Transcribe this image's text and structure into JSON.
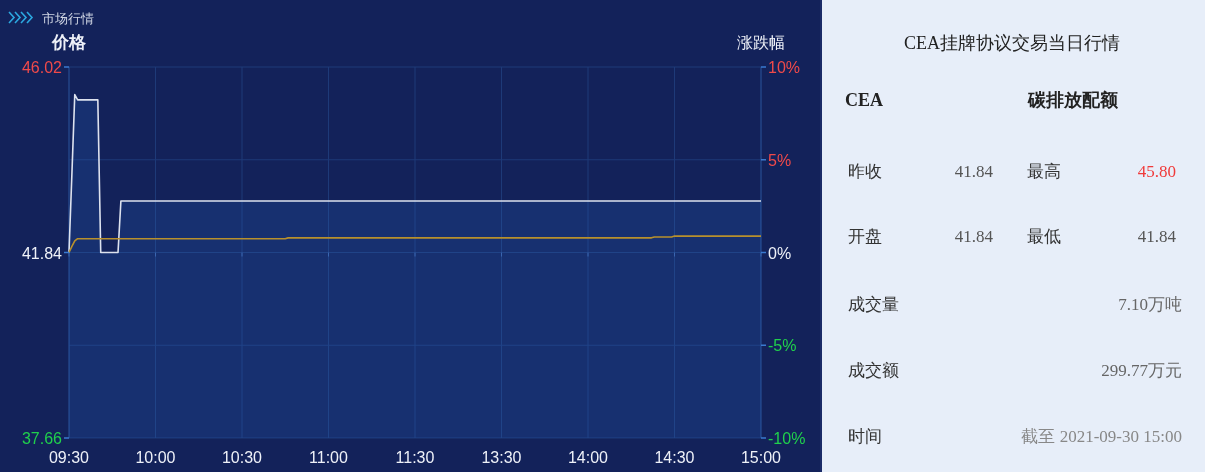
{
  "chart_data": [
    {
      "type": "line",
      "title": "市场行情",
      "ylabel": "价格",
      "y2label": "涨跌幅",
      "categories": [
        "09:30",
        null,
        null,
        null,
        null,
        null,
        null,
        null,
        null,
        null,
        null,
        null,
        null,
        null,
        null,
        null,
        null,
        null,
        null,
        null,
        null,
        null,
        null,
        null,
        null,
        null,
        null,
        null,
        null,
        null,
        "10:00",
        null,
        null,
        null,
        null,
        null,
        null,
        null,
        null,
        null,
        null,
        null,
        null,
        null,
        null,
        null,
        null,
        null,
        null,
        null,
        null,
        null,
        null,
        null,
        null,
        null,
        null,
        null,
        null,
        null,
        "10:30",
        null,
        null,
        null,
        null,
        null,
        null,
        null,
        null,
        null,
        null,
        null,
        null,
        null,
        null,
        null,
        null,
        null,
        null,
        null,
        null,
        null,
        null,
        null,
        null,
        null,
        null,
        null,
        null,
        null,
        "11:00",
        null,
        null,
        null,
        null,
        null,
        null,
        null,
        null,
        null,
        null,
        null,
        null,
        null,
        null,
        null,
        null,
        null,
        null,
        null,
        null,
        null,
        null,
        null,
        null,
        null,
        null,
        null,
        null,
        null,
        "11:30",
        null,
        null,
        null,
        null,
        null,
        null,
        null,
        null,
        null,
        null,
        null,
        null,
        null,
        null,
        null,
        null,
        null,
        null,
        null,
        null,
        null,
        null,
        null,
        null,
        null,
        null,
        null,
        null,
        null,
        "13:30",
        null,
        null,
        null,
        null,
        null,
        null,
        null,
        null,
        null,
        null,
        null,
        null,
        null,
        null,
        null,
        null,
        null,
        null,
        null,
        null,
        null,
        null,
        null,
        null,
        null,
        null,
        null,
        null,
        null,
        "14:00",
        null,
        null,
        null,
        null,
        null,
        null,
        null,
        null,
        null,
        null,
        null,
        null,
        null,
        null,
        null,
        null,
        null,
        null,
        null,
        null,
        null,
        null,
        null,
        null,
        null,
        null,
        null,
        null,
        null,
        "14:30",
        null,
        null,
        null,
        null,
        null,
        null,
        null,
        null,
        null,
        null,
        null,
        null,
        null,
        null,
        null,
        null,
        null,
        null,
        null,
        null,
        null,
        null,
        null,
        null,
        null,
        null,
        null,
        null,
        null,
        "15:00"
      ],
      "ylim": [
        37.66,
        46.02
      ],
      "yticks": [
        37.66,
        41.84,
        46.02
      ],
      "y2lim": [
        -10,
        10
      ],
      "y2ticks": [
        {
          "value": -10,
          "label": "-10%"
        },
        {
          "value": -5,
          "label": "-5%"
        },
        {
          "value": 0,
          "label": "0%"
        },
        {
          "value": 5,
          "label": "5%"
        },
        {
          "value": 10,
          "label": "10%"
        }
      ],
      "grid": true,
      "series": [
        {
          "type": "area",
          "color": "#dde2ee",
          "values": [
            41.84,
            43.6,
            45.4,
            45.28,
            45.28,
            45.28,
            45.28,
            45.28,
            45.28,
            45.28,
            45.28,
            41.84,
            41.84,
            41.84,
            41.84,
            41.84,
            41.84,
            41.84,
            43,
            43,
            43,
            43,
            43,
            43,
            43,
            43,
            43,
            43,
            43,
            43,
            43,
            43,
            43,
            43,
            43,
            43,
            43,
            43,
            43,
            43,
            43,
            43,
            43,
            43,
            43,
            43,
            43,
            43,
            43,
            43,
            43,
            43,
            43,
            43,
            43,
            43,
            43,
            43,
            43,
            43,
            43,
            43,
            43,
            43,
            43,
            43,
            43,
            43,
            43,
            43,
            43,
            43,
            43,
            43,
            43,
            43,
            43,
            43,
            43,
            43,
            43,
            43,
            43,
            43,
            43,
            43,
            43,
            43,
            43,
            43,
            43,
            43,
            43,
            43,
            43,
            43,
            43,
            43,
            43,
            43,
            43,
            43,
            43,
            43,
            43,
            43,
            43,
            43,
            43,
            43,
            43,
            43,
            43,
            43,
            43,
            43,
            43,
            43,
            43,
            43,
            43,
            43,
            43,
            43,
            43,
            43,
            43,
            43,
            43,
            43,
            43,
            43,
            43,
            43,
            43,
            43,
            43,
            43,
            43,
            43,
            43,
            43,
            43,
            43,
            43,
            43,
            43,
            43,
            43,
            43,
            43,
            43,
            43,
            43,
            43,
            43,
            43,
            43,
            43,
            43,
            43,
            43,
            43,
            43,
            43,
            43,
            43,
            43,
            43,
            43,
            43,
            43,
            43,
            43,
            43,
            43,
            43,
            43,
            43,
            43,
            43,
            43,
            43,
            43,
            43,
            43,
            43,
            43,
            43,
            43,
            43,
            43,
            43,
            43,
            43,
            43,
            43,
            43,
            43,
            43,
            43,
            43,
            43,
            43,
            43,
            43,
            43,
            43,
            43,
            43,
            43,
            43,
            43,
            43,
            43,
            43,
            43,
            43,
            43,
            43,
            43,
            43,
            43,
            43,
            43,
            43,
            43,
            43,
            43,
            43,
            43,
            43,
            43,
            43,
            43,
            43,
            43,
            43,
            43,
            43,
            43
          ]
        },
        {
          "type": "line",
          "color": "#b8902c",
          "values": [
            41.84,
            41.98,
            42.1,
            42.15,
            42.15,
            42.15,
            42.15,
            42.15,
            42.15,
            42.15,
            42.15,
            42.15,
            42.15,
            42.15,
            42.15,
            42.15,
            42.15,
            42.15,
            42.15,
            42.15,
            42.15,
            42.15,
            42.15,
            42.15,
            42.15,
            42.15,
            42.15,
            42.15,
            42.15,
            42.15,
            42.15,
            42.15,
            42.15,
            42.15,
            42.15,
            42.15,
            42.15,
            42.15,
            42.15,
            42.15,
            42.15,
            42.15,
            42.15,
            42.15,
            42.15,
            42.15,
            42.15,
            42.15,
            42.15,
            42.15,
            42.15,
            42.15,
            42.15,
            42.15,
            42.15,
            42.15,
            42.15,
            42.15,
            42.15,
            42.15,
            42.15,
            42.15,
            42.15,
            42.15,
            42.15,
            42.15,
            42.15,
            42.15,
            42.15,
            42.15,
            42.15,
            42.15,
            42.15,
            42.15,
            42.15,
            42.15,
            42.17,
            42.17,
            42.17,
            42.17,
            42.17,
            42.17,
            42.17,
            42.17,
            42.17,
            42.17,
            42.17,
            42.17,
            42.17,
            42.17,
            42.17,
            42.17,
            42.17,
            42.17,
            42.17,
            42.17,
            42.17,
            42.17,
            42.17,
            42.17,
            42.17,
            42.17,
            42.17,
            42.17,
            42.17,
            42.17,
            42.17,
            42.17,
            42.17,
            42.17,
            42.17,
            42.17,
            42.17,
            42.17,
            42.17,
            42.17,
            42.17,
            42.17,
            42.17,
            42.17,
            42.17,
            42.17,
            42.17,
            42.17,
            42.17,
            42.17,
            42.17,
            42.17,
            42.17,
            42.17,
            42.17,
            42.17,
            42.17,
            42.17,
            42.17,
            42.17,
            42.17,
            42.17,
            42.17,
            42.17,
            42.17,
            42.17,
            42.17,
            42.17,
            42.17,
            42.17,
            42.17,
            42.17,
            42.17,
            42.17,
            42.17,
            42.17,
            42.17,
            42.17,
            42.17,
            42.17,
            42.17,
            42.17,
            42.17,
            42.17,
            42.17,
            42.17,
            42.17,
            42.17,
            42.17,
            42.17,
            42.17,
            42.17,
            42.17,
            42.17,
            42.17,
            42.17,
            42.17,
            42.17,
            42.17,
            42.17,
            42.17,
            42.17,
            42.17,
            42.17,
            42.17,
            42.17,
            42.17,
            42.17,
            42.17,
            42.17,
            42.17,
            42.17,
            42.17,
            42.17,
            42.17,
            42.17,
            42.17,
            42.17,
            42.17,
            42.17,
            42.17,
            42.17,
            42.17,
            42.17,
            42.17,
            42.17,
            42.17,
            42.19,
            42.19,
            42.19,
            42.19,
            42.19,
            42.19,
            42.19,
            42.21,
            42.21,
            42.21,
            42.21,
            42.21,
            42.21,
            42.21,
            42.21,
            42.21,
            42.21,
            42.21,
            42.21,
            42.21,
            42.21,
            42.21,
            42.21,
            42.21,
            42.21,
            42.21,
            42.21,
            42.21,
            42.21,
            42.21,
            42.21,
            42.21,
            42.21,
            42.21,
            42.21,
            42.21,
            42.21,
            42.21
          ]
        }
      ]
    },
    {
      "type": "other",
      "title": "CEA挂牌协议交易当日行情",
      "annotations": [
        "CEA",
        "碳排放配额",
        "昨收",
        "41.84",
        "最高",
        "45.80",
        "开盘",
        "41.84",
        "最低",
        "41.84",
        "成交量",
        "7.10万吨",
        "成交额",
        "299.77万元",
        "时间",
        "截至 2021-09-30 15:00"
      ]
    }
  ]
}
